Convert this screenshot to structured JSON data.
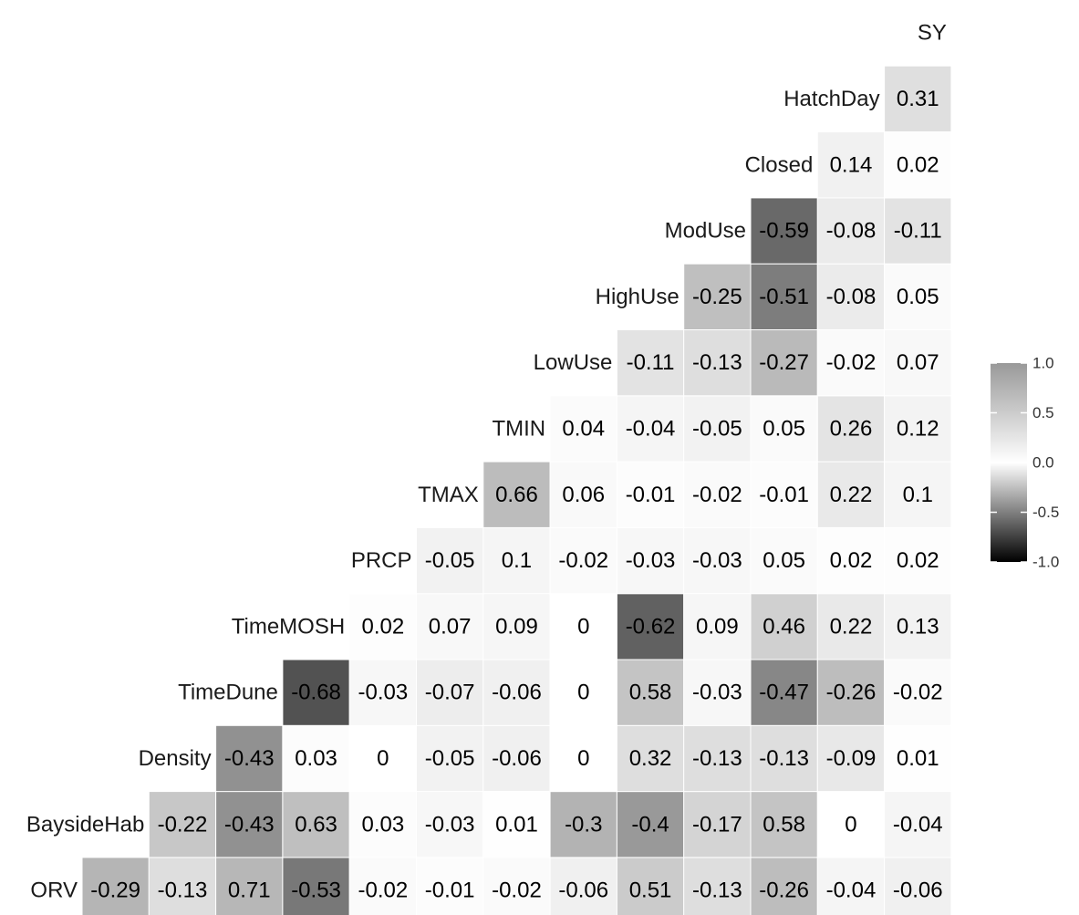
{
  "chart_data": {
    "type": "heatmap",
    "variables": [
      "ORV",
      "BaysideHab",
      "Density",
      "TimeDune",
      "TimeMOSH",
      "PRCP",
      "TMAX",
      "TMIN",
      "LowUse",
      "HighUse",
      "ModUse",
      "Closed",
      "HatchDay",
      "SY"
    ],
    "rows": [
      {
        "label": "ORV",
        "values": [
          "-0.29",
          "-0.13",
          "0.71",
          "-0.53",
          "-0.02",
          "-0.01",
          "-0.02",
          "-0.06",
          "0.51",
          "-0.13",
          "-0.26",
          "-0.04",
          "-0.06"
        ]
      },
      {
        "label": "BaysideHab",
        "values": [
          "-0.22",
          "-0.43",
          "0.63",
          "0.03",
          "-0.03",
          "0.01",
          "-0.3",
          "-0.4",
          "-0.17",
          "0.58",
          "0",
          "-0.04"
        ]
      },
      {
        "label": "Density",
        "values": [
          "-0.43",
          "0.03",
          "0",
          "-0.05",
          "-0.06",
          "0",
          "0.32",
          "-0.13",
          "-0.13",
          "-0.09",
          "0.01"
        ]
      },
      {
        "label": "TimeDune",
        "values": [
          "-0.68",
          "-0.03",
          "-0.07",
          "-0.06",
          "0",
          "0.58",
          "-0.03",
          "-0.47",
          "-0.26",
          "-0.02"
        ]
      },
      {
        "label": "TimeMOSH",
        "values": [
          "0.02",
          "0.07",
          "0.09",
          "0",
          "-0.62",
          "0.09",
          "0.46",
          "0.22",
          "0.13"
        ]
      },
      {
        "label": "PRCP",
        "values": [
          "-0.05",
          "0.1",
          "-0.02",
          "-0.03",
          "-0.03",
          "0.05",
          "0.02",
          "0.02"
        ]
      },
      {
        "label": "TMAX",
        "values": [
          "0.66",
          "0.06",
          "-0.01",
          "-0.02",
          "-0.01",
          "0.22",
          "0.1"
        ]
      },
      {
        "label": "TMIN",
        "values": [
          "0.04",
          "-0.04",
          "-0.05",
          "0.05",
          "0.26",
          "0.12"
        ]
      },
      {
        "label": "LowUse",
        "values": [
          "-0.11",
          "-0.13",
          "-0.27",
          "-0.02",
          "0.07"
        ]
      },
      {
        "label": "HighUse",
        "values": [
          "-0.25",
          "-0.51",
          "-0.08",
          "0.05"
        ]
      },
      {
        "label": "ModUse",
        "values": [
          "-0.59",
          "-0.08",
          "-0.11"
        ]
      },
      {
        "label": "Closed",
        "values": [
          "0.14",
          "0.02"
        ]
      },
      {
        "label": "HatchDay",
        "values": [
          "0.31"
        ]
      },
      {
        "label": "SY",
        "values": []
      }
    ],
    "color_scale": {
      "range": [
        -1.0,
        1.0
      ],
      "ticks": [
        "1.0",
        "0.5",
        "0.0",
        "-0.5",
        "-1.0"
      ],
      "low_color": "#000000",
      "mid_color": "#ffffff",
      "high_color": "#999999",
      "placement": "right"
    }
  }
}
